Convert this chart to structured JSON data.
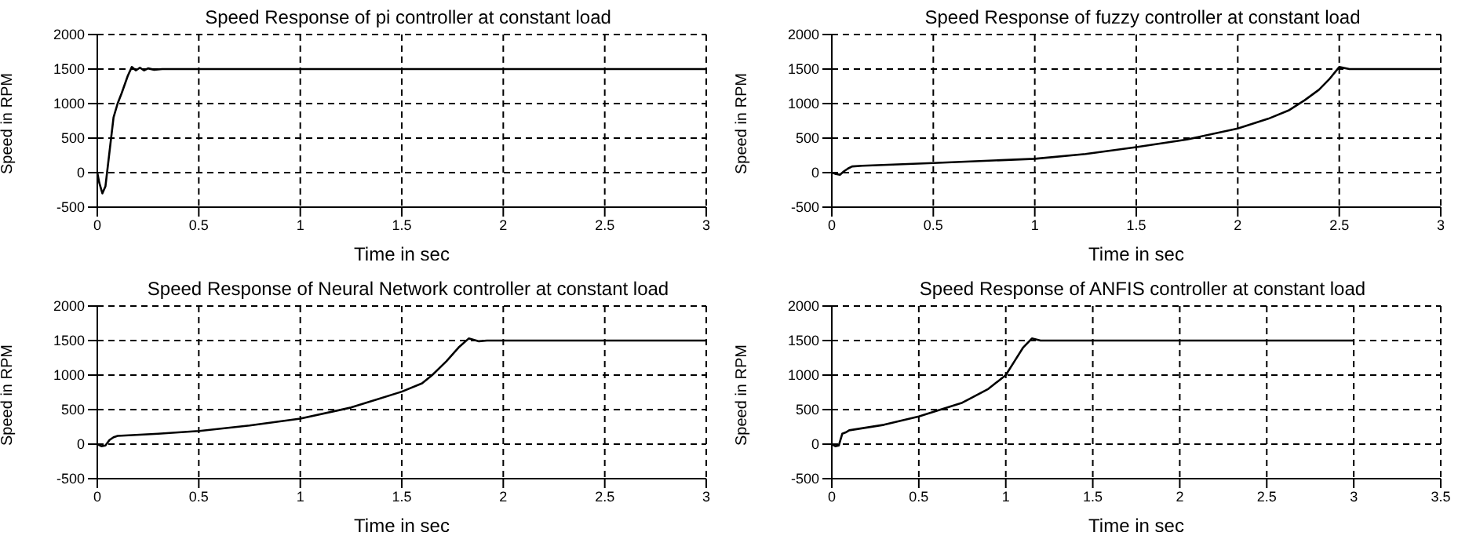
{
  "chart_data": [
    {
      "type": "line",
      "title": "Speed Response of pi controller  at constant load",
      "xlabel": "Time in sec",
      "ylabel": "Speed in RPM",
      "x": [
        0,
        0.01,
        0.025,
        0.04,
        0.06,
        0.08,
        0.1,
        0.12,
        0.15,
        0.17,
        0.19,
        0.21,
        0.23,
        0.25,
        0.28,
        0.32,
        3
      ],
      "series": [
        {
          "color": "#000000",
          "values": [
            0,
            -150,
            -300,
            -200,
            300,
            800,
            1000,
            1150,
            1400,
            1530,
            1480,
            1520,
            1480,
            1510,
            1490,
            1500,
            1500
          ]
        }
      ],
      "xlim": [
        0,
        3
      ],
      "ylim": [
        -500,
        2000
      ],
      "xticks": [
        0,
        0.5,
        1,
        1.5,
        2,
        2.5,
        3
      ],
      "yticks": [
        -500,
        0,
        500,
        1000,
        1500,
        2000
      ],
      "grid": true
    },
    {
      "type": "line",
      "title": "Speed Response of fuzzy controller at constant load",
      "xlabel": "Time in sec",
      "ylabel": "Speed in RPM",
      "x": [
        0,
        0.02,
        0.04,
        0.06,
        0.08,
        0.1,
        0.15,
        0.5,
        1,
        1.25,
        1.5,
        1.75,
        2,
        2.15,
        2.25,
        2.33,
        2.4,
        2.45,
        2.5,
        2.55,
        3
      ],
      "series": [
        {
          "color": "#000000",
          "values": [
            0,
            -20,
            -30,
            20,
            60,
            90,
            100,
            140,
            200,
            270,
            370,
            480,
            640,
            780,
            900,
            1050,
            1200,
            1350,
            1530,
            1500,
            1500
          ]
        }
      ],
      "xlim": [
        0,
        3
      ],
      "ylim": [
        -500,
        2000
      ],
      "xticks": [
        0,
        0.5,
        1,
        1.5,
        2,
        2.5,
        3
      ],
      "yticks": [
        -500,
        0,
        500,
        1000,
        1500,
        2000
      ],
      "grid": true
    },
    {
      "type": "line",
      "title": "Speed Response of Neural Network controller at constant load",
      "xlabel": "Time in sec",
      "ylabel": "Speed in RPM",
      "x": [
        0,
        0.02,
        0.04,
        0.06,
        0.08,
        0.1,
        0.3,
        0.5,
        0.75,
        1,
        1.25,
        1.5,
        1.6,
        1.65,
        1.72,
        1.78,
        1.83,
        1.88,
        1.92,
        3
      ],
      "series": [
        {
          "color": "#000000",
          "values": [
            0,
            -30,
            -20,
            60,
            100,
            120,
            150,
            190,
            270,
            370,
            530,
            760,
            880,
            1000,
            1200,
            1400,
            1530,
            1490,
            1500,
            1500
          ]
        }
      ],
      "xlim": [
        0,
        3
      ],
      "ylim": [
        -500,
        2000
      ],
      "xticks": [
        0,
        0.5,
        1,
        1.5,
        2,
        2.5,
        3
      ],
      "yticks": [
        -500,
        0,
        500,
        1000,
        1500,
        2000
      ],
      "grid": true
    },
    {
      "type": "line",
      "title": "Speed Response of ANFIS controller at constant load",
      "xlabel": "Time in sec",
      "ylabel": "Speed in RPM",
      "x": [
        0,
        0.02,
        0.04,
        0.06,
        0.08,
        0.1,
        0.3,
        0.5,
        0.75,
        0.9,
        1,
        1.05,
        1.1,
        1.15,
        1.2,
        3
      ],
      "series": [
        {
          "color": "#000000",
          "values": [
            0,
            -30,
            -20,
            150,
            170,
            200,
            280,
            400,
            600,
            800,
            1000,
            1200,
            1400,
            1530,
            1500,
            1500
          ]
        }
      ],
      "xlim": [
        0,
        3.5
      ],
      "ylim": [
        -500,
        2000
      ],
      "xticks": [
        0,
        0.5,
        1,
        1.5,
        2,
        2.5,
        3,
        3.5
      ],
      "yticks": [
        -500,
        0,
        500,
        1000,
        1500,
        2000
      ],
      "grid": true
    }
  ]
}
